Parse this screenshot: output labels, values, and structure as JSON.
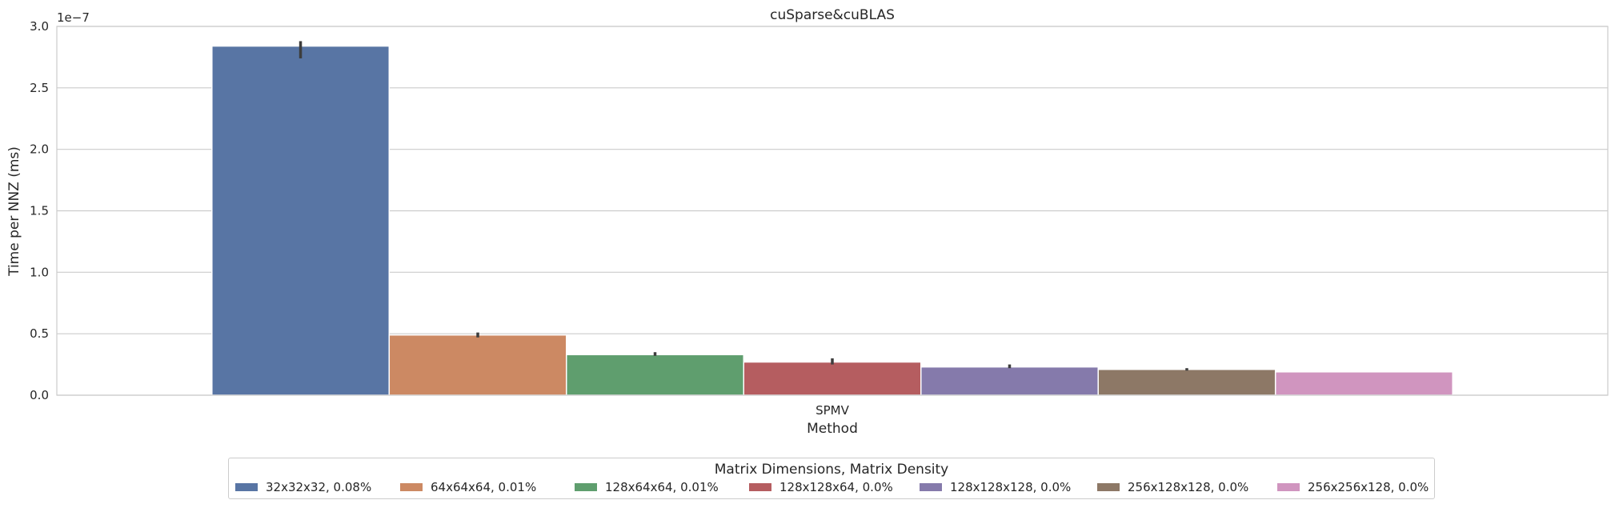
{
  "chart_data": {
    "type": "bar",
    "title": "cuSparse&cuBLAS",
    "xlabel": "Method",
    "ylabel": "Time per NNZ (ms)",
    "y_offset_label": "1e−7",
    "y_scale": 1e-07,
    "ylim": [
      0,
      3.0
    ],
    "yticks": [
      "0.0",
      "0.5",
      "1.0",
      "1.5",
      "2.0",
      "2.5",
      "3.0"
    ],
    "grid": "horizontal",
    "categories": [
      "SPMV"
    ],
    "legend_title": "Matrix Dimensions, Matrix Density",
    "legend_position": "bottom-center",
    "series": [
      {
        "name": "32x32x32, 0.08%",
        "values": [
          2.84
        ],
        "err": [
          2.74,
          2.88
        ],
        "color": "#5875a4"
      },
      {
        "name": "64x64x64, 0.01%",
        "values": [
          0.49
        ],
        "err": [
          0.47,
          0.51
        ],
        "color": "#cc8963"
      },
      {
        "name": "128x64x64, 0.01%",
        "values": [
          0.33
        ],
        "err": [
          0.32,
          0.35
        ],
        "color": "#5f9e6e"
      },
      {
        "name": "128x128x64, 0.0%",
        "values": [
          0.27
        ],
        "err": [
          0.25,
          0.3
        ],
        "color": "#b55d60"
      },
      {
        "name": "128x128x128, 0.0%",
        "values": [
          0.23
        ],
        "err": [
          0.22,
          0.25
        ],
        "color": "#857aab"
      },
      {
        "name": "256x128x128, 0.0%",
        "values": [
          0.21
        ],
        "err": [
          0.2,
          0.22
        ],
        "color": "#8d7866"
      },
      {
        "name": "256x256x128, 0.0%",
        "values": [
          0.19
        ],
        "err": null,
        "color": "#d095bf"
      }
    ]
  }
}
